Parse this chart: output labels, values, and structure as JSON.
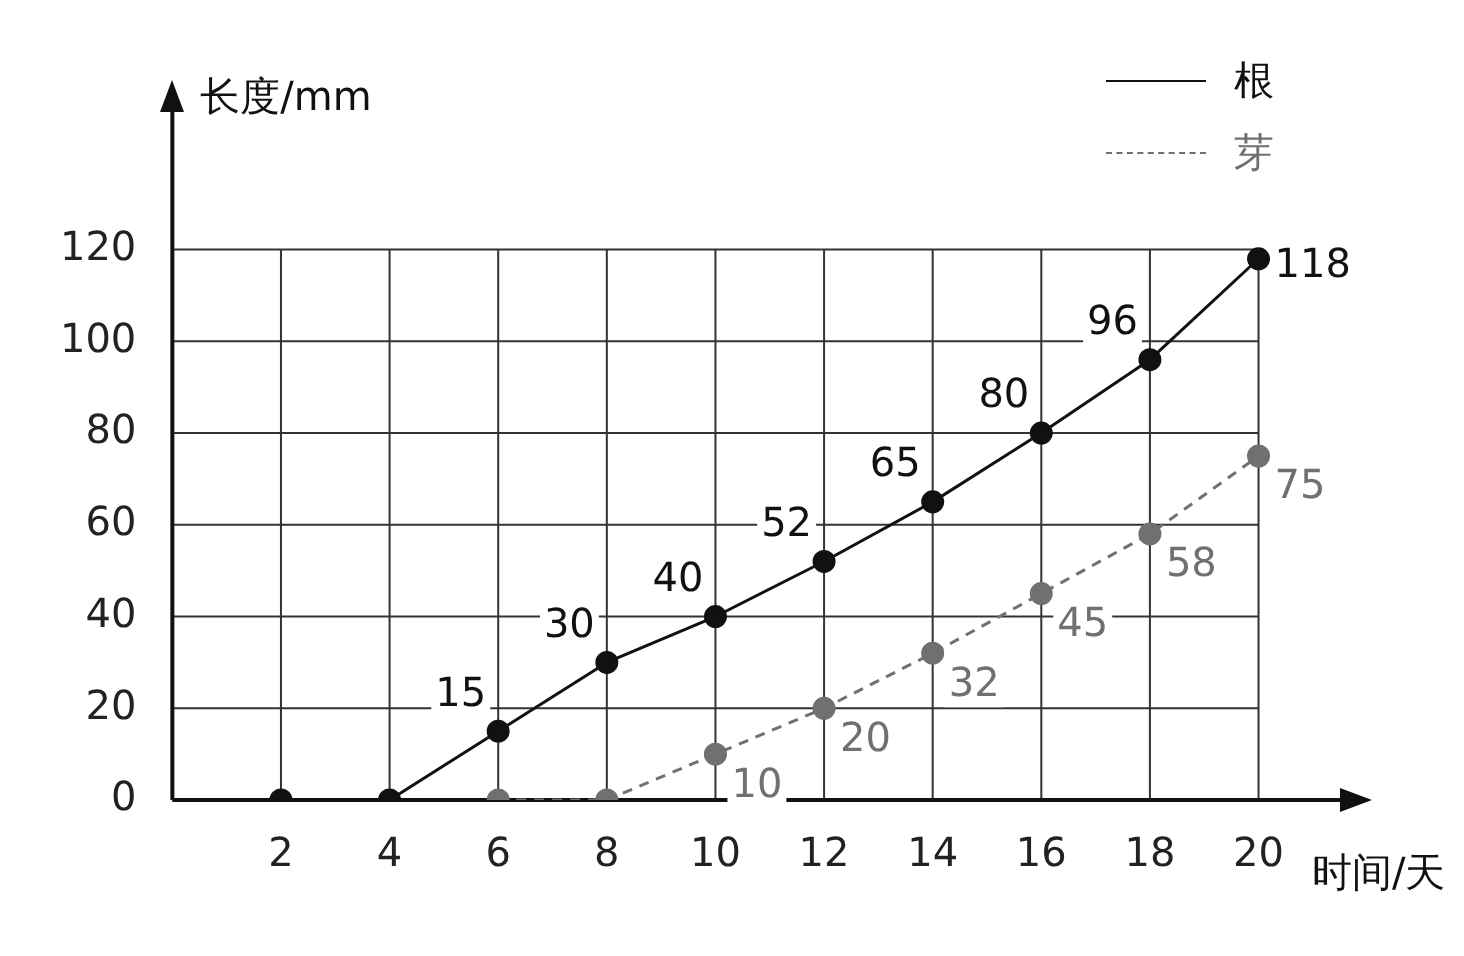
{
  "chart_data": {
    "type": "line",
    "xlabel": "时间/天",
    "ylabel": "长度/mm",
    "xlim": [
      0,
      21.5
    ],
    "ylim": [
      0,
      150
    ],
    "xticks": [
      {
        "value": 0,
        "label": null
      },
      2,
      4,
      6,
      8,
      10,
      12,
      14,
      16,
      18,
      20
    ],
    "yticks": [
      0,
      20,
      40,
      60,
      80,
      100,
      120
    ],
    "grid": true,
    "legend": "top right",
    "marker": "circle",
    "series": [
      {
        "name": "根",
        "color": "#111111",
        "line_style": "solid",
        "x": [
          2,
          4,
          6,
          8,
          10,
          12,
          14,
          16,
          18,
          20
        ],
        "values": [
          0,
          0,
          15,
          30,
          40,
          52,
          65,
          80,
          96,
          118
        ],
        "value_labels": [
          null,
          null,
          "15",
          "30",
          "40",
          "52",
          "65",
          "80",
          "96",
          "118"
        ]
      },
      {
        "name": "芽",
        "color": "#707070",
        "line_style": "dashed",
        "x": [
          6,
          8,
          10,
          12,
          14,
          16,
          18,
          20
        ],
        "values": [
          0,
          0,
          10,
          20,
          32,
          45,
          58,
          75
        ],
        "value_labels": [
          null,
          null,
          "10",
          "20",
          "32",
          "45",
          "58",
          "75"
        ]
      }
    ]
  }
}
